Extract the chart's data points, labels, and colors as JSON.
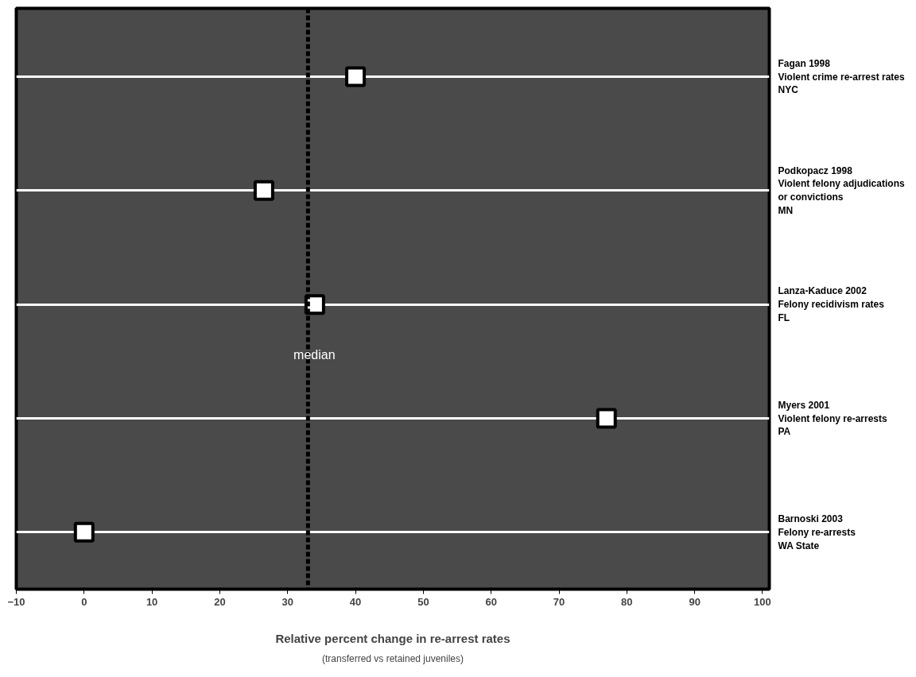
{
  "chart_data": {
    "type": "scatter",
    "orientation": "horizontal",
    "categories": [
      "Fagan 1998\nViolent crime re-arrest rates\nNYC",
      "Podkopacz 1998\nViolent felony adjudications\nor convictions\nMN",
      "Lanza-Kaduce 2002\nFelony recidivism rates\nFL",
      "Myers 2001\nViolent felony re-arrests\nPA",
      "Barnoski 2003\nFelony re-arrests\nWA State"
    ],
    "series": [
      {
        "color": "#ffffff",
        "values": [
          40,
          26.5,
          34,
          77,
          0
        ]
      }
    ],
    "marker": "square",
    "xlim": [
      -10,
      101
    ],
    "xticks": [
      -10,
      0,
      10,
      20,
      30,
      40,
      50,
      60,
      70,
      80,
      90,
      100
    ],
    "xlabel": "Relative percent change in re-arrest rates",
    "annotations": [
      "(transferred vs retained juveniles)"
    ],
    "ref_lines": [
      {
        "axis": "x",
        "value": 33,
        "label": "median",
        "color": "#000000",
        "line_style": "dashed"
      }
    ],
    "grid": "y"
  }
}
